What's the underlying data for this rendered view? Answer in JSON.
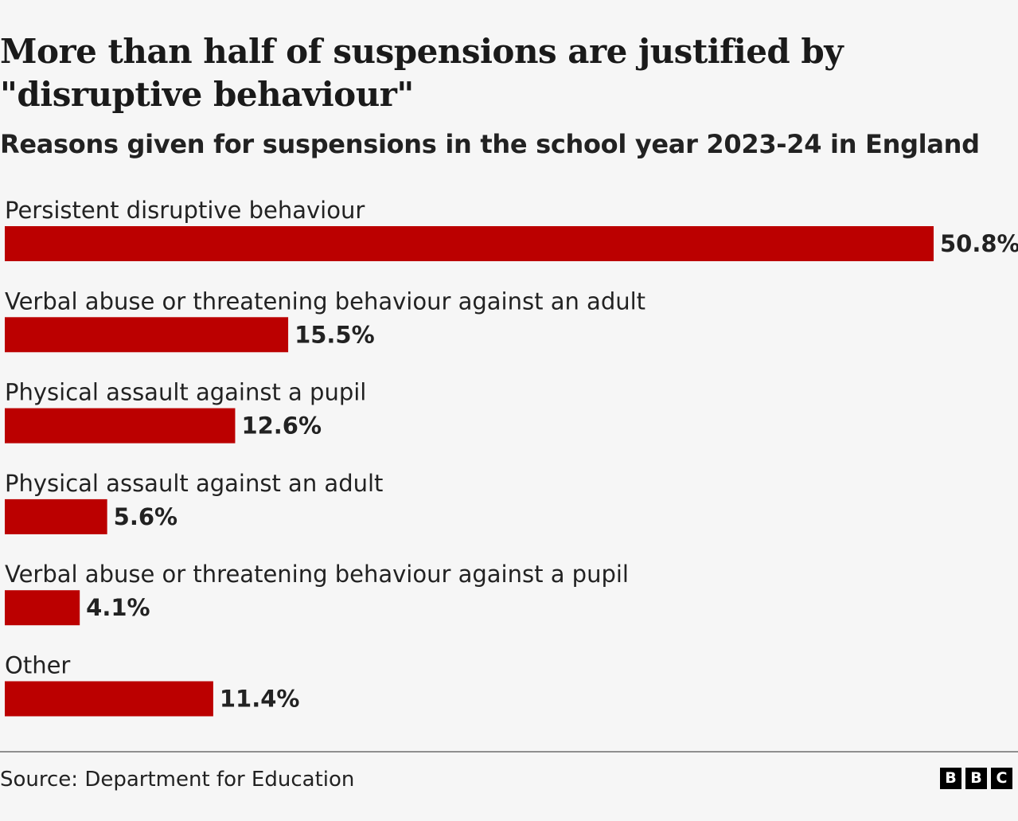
{
  "title": "More than half of suspensions are justified by \"disruptive behaviour\"",
  "subtitle": "Reasons given for suspensions in the school year 2023-24 in England",
  "source": "Source: Department for Education",
  "logo_letters": [
    "B",
    "B",
    "C"
  ],
  "colors": {
    "bar": "#bb0000",
    "background": "#f6f6f6",
    "text": "#222222"
  },
  "chart_data": {
    "type": "bar",
    "orientation": "horizontal",
    "title": "More than half of suspensions are justified by \"disruptive behaviour\"",
    "subtitle": "Reasons given for suspensions in the school year 2023-24 in England",
    "categories": [
      "Persistent disruptive behaviour",
      "Verbal abuse or threatening behaviour against an adult",
      "Physical assault against a pupil",
      "Physical assault against an adult",
      "Verbal abuse or threatening behaviour against a pupil",
      "Other"
    ],
    "values": [
      50.8,
      15.5,
      12.6,
      5.6,
      4.1,
      11.4
    ],
    "value_labels": [
      "50.8%",
      "15.5%",
      "12.6%",
      "5.6%",
      "4.1%",
      "11.4%"
    ],
    "unit": "%",
    "xlim": [
      0,
      50.8
    ],
    "grid": false,
    "legend": "none"
  }
}
